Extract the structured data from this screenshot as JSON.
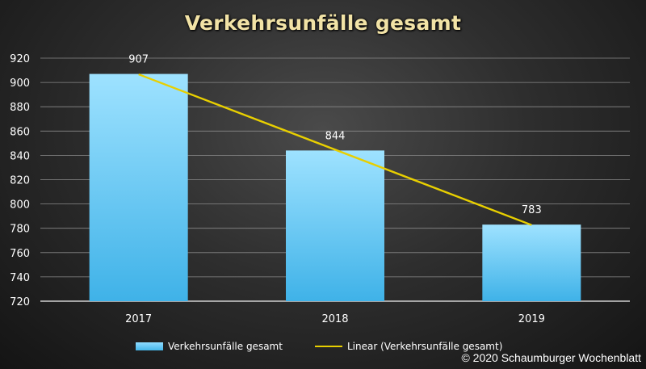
{
  "chart_data": {
    "type": "bar",
    "title": "Verkehrsunfälle gesamt",
    "categories": [
      "2017",
      "2018",
      "2019"
    ],
    "series": [
      {
        "name": "Verkehrsunfälle gesamt",
        "values": [
          907,
          844,
          783
        ],
        "color": "#5cc8f5"
      }
    ],
    "trendline": {
      "name": "Linear (Verkehrsunfälle gesamt)",
      "type": "linear",
      "color": "#e8cf00"
    },
    "data_labels": [
      "907",
      "844",
      "783"
    ],
    "ylim": [
      720,
      920
    ],
    "yticks": [
      720,
      740,
      760,
      780,
      800,
      820,
      840,
      860,
      880,
      900,
      920
    ],
    "grid": true,
    "legend_position": "bottom"
  },
  "copyright": "© 2020 Schaumburger Wochenblatt"
}
